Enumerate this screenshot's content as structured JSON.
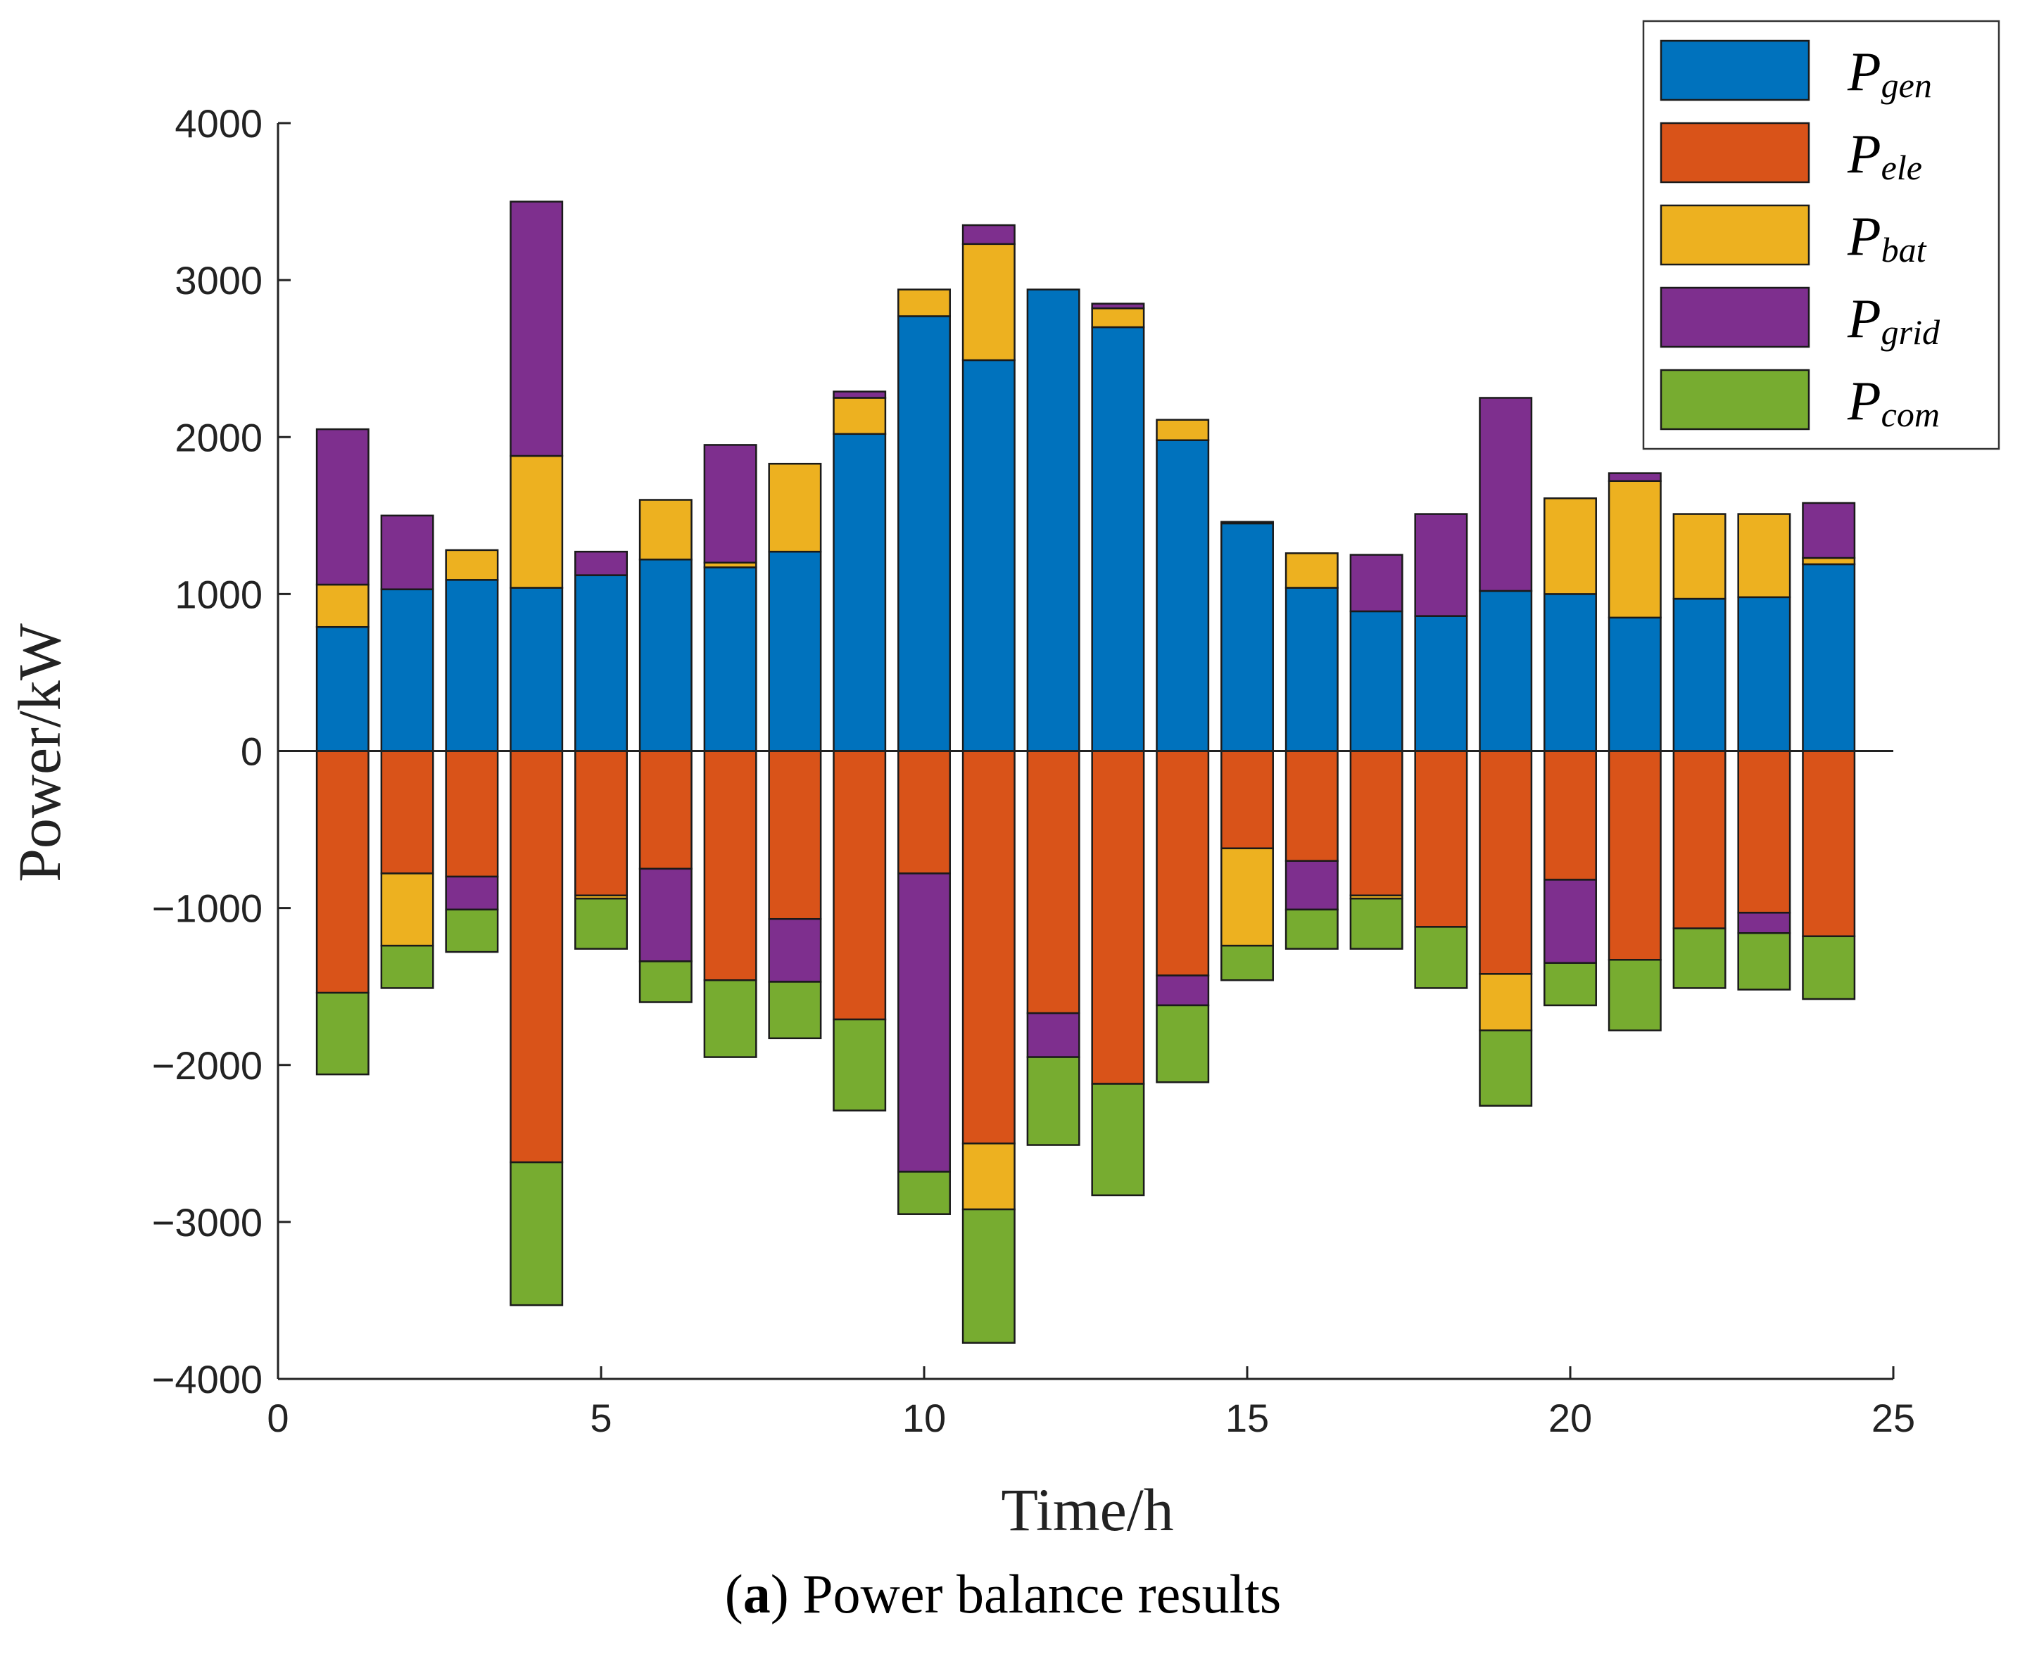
{
  "chart_data": {
    "type": "bar",
    "stacked": true,
    "title": "",
    "xlabel": "Time/h",
    "ylabel": "Power/kW",
    "xlim": [
      0,
      25
    ],
    "ylim": [
      -4000,
      4000
    ],
    "xticks": [
      "0",
      "5",
      "10",
      "15",
      "20",
      "25"
    ],
    "yticks": [
      "4000",
      "3000",
      "2000",
      "1000",
      "0",
      "-1000",
      "-2000",
      "-3000",
      "-4000"
    ],
    "caption_label": "a",
    "caption_text": "Power balance results",
    "x": [
      1,
      2,
      3,
      4,
      5,
      6,
      7,
      8,
      9,
      10,
      11,
      12,
      13,
      14,
      15,
      16,
      17,
      18,
      19,
      20,
      21,
      22,
      23,
      24
    ],
    "legend_position": "top-right",
    "series": [
      {
        "name": "P_gen",
        "symbol": "P",
        "subscript": "gen",
        "color": "#0072BD",
        "values": [
          790,
          1030,
          1090,
          1040,
          1120,
          1220,
          1170,
          1270,
          2020,
          2770,
          2490,
          2940,
          2700,
          1980,
          1450,
          1040,
          890,
          860,
          1020,
          1000,
          850,
          970,
          980,
          1190
        ]
      },
      {
        "name": "P_ele",
        "symbol": "P",
        "subscript": "ele",
        "color": "#D95319",
        "values": [
          -1540,
          -780,
          -800,
          -2620,
          -920,
          -750,
          -1460,
          -1070,
          -1710,
          -780,
          -2500,
          -1670,
          -2120,
          -1430,
          -620,
          -700,
          -920,
          -1120,
          -1420,
          -820,
          -1330,
          -1130,
          -1030,
          -1180
        ]
      },
      {
        "name": "P_bat",
        "symbol": "P",
        "subscript": "bat",
        "color": "#EDB120",
        "values": [
          270,
          0,
          190,
          840,
          0,
          380,
          30,
          560,
          230,
          170,
          740,
          0,
          120,
          130,
          0,
          220,
          0,
          0,
          0,
          610,
          870,
          540,
          530,
          40
        ],
        "negative_values": [
          0,
          -460,
          0,
          0,
          -20,
          0,
          0,
          0,
          0,
          0,
          -420,
          0,
          0,
          0,
          -620,
          0,
          -20,
          0,
          -360,
          0,
          0,
          0,
          0,
          0
        ]
      },
      {
        "name": "P_grid",
        "symbol": "P",
        "subscript": "grid",
        "color": "#7E2F8E",
        "values": [
          990,
          470,
          0,
          1620,
          150,
          0,
          750,
          0,
          40,
          0,
          120,
          0,
          30,
          0,
          10,
          0,
          360,
          650,
          1230,
          0,
          50,
          0,
          0,
          350
        ],
        "negative_values": [
          0,
          0,
          -210,
          0,
          0,
          -590,
          0,
          -400,
          0,
          -1900,
          0,
          -280,
          0,
          -190,
          0,
          -310,
          0,
          0,
          0,
          -530,
          0,
          0,
          -130,
          0
        ]
      },
      {
        "name": "P_com",
        "symbol": "P",
        "subscript": "com",
        "color": "#77AC30",
        "values": [
          -520,
          -270,
          -270,
          -910,
          -320,
          -260,
          -490,
          -360,
          -580,
          -270,
          -850,
          -560,
          -710,
          -490,
          -220,
          -250,
          -320,
          -390,
          -480,
          -270,
          -450,
          -380,
          -360,
          -400
        ]
      }
    ]
  }
}
